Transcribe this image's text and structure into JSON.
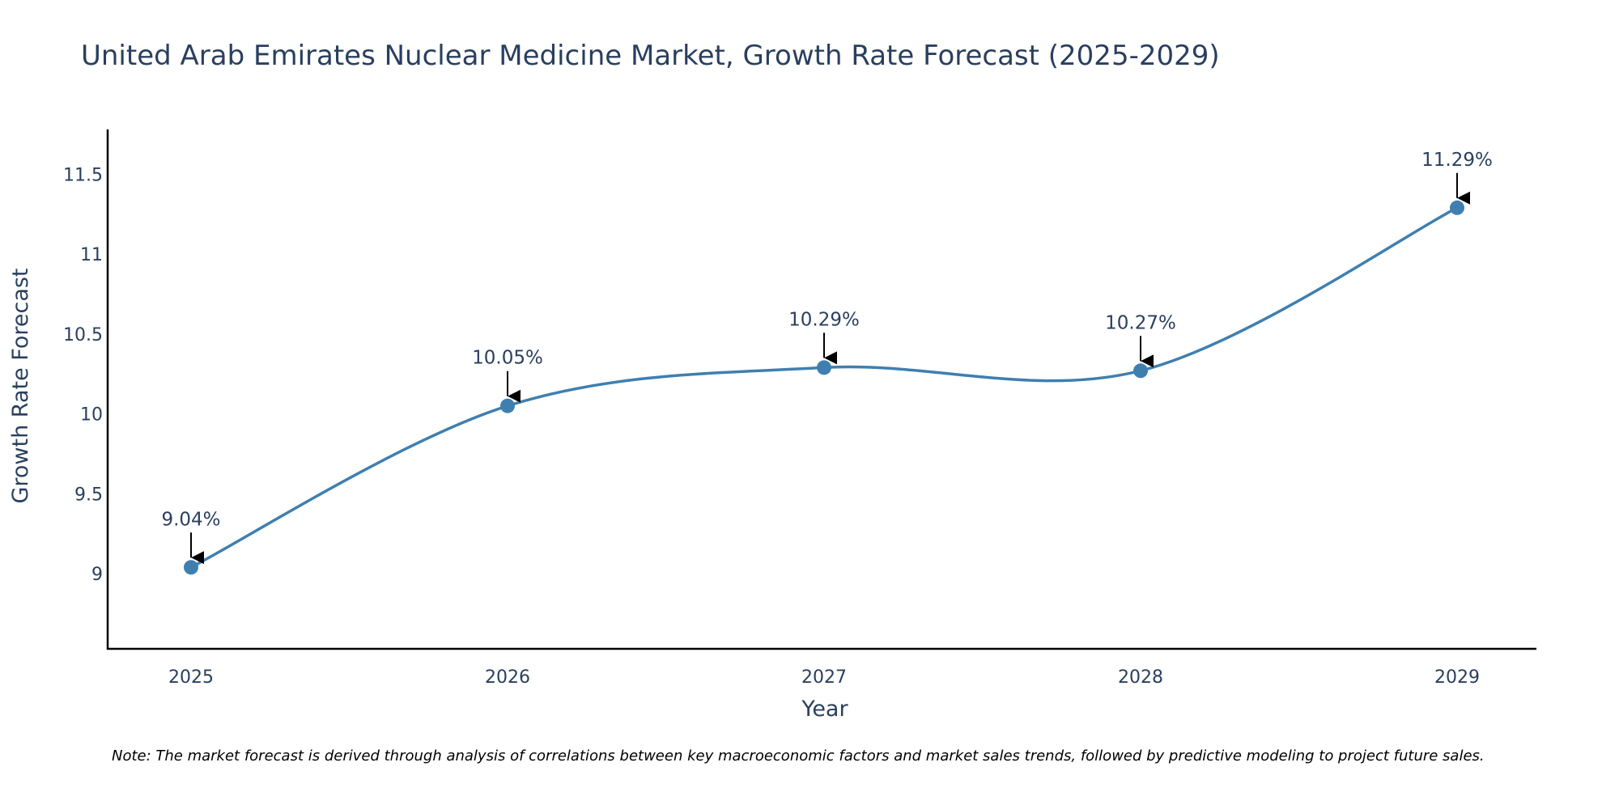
{
  "chart_data": {
    "type": "line",
    "title": "United Arab Emirates Nuclear Medicine Market, Growth Rate Forecast (2025-2029)",
    "xlabel": "Year",
    "ylabel": "Growth Rate Forecast",
    "categories": [
      "2025",
      "2026",
      "2027",
      "2028",
      "2029"
    ],
    "values": [
      9.04,
      10.05,
      10.29,
      10.27,
      11.29
    ],
    "data_labels": [
      "9.04%",
      "10.05%",
      "10.29%",
      "10.27%",
      "11.29%"
    ],
    "y_ticks": [
      9,
      9.5,
      10,
      10.5,
      11,
      11.5
    ],
    "y_tick_labels": [
      "9",
      "9.5",
      "10",
      "10.5",
      "11",
      "11.5"
    ],
    "ylim": [
      8.53,
      11.78
    ],
    "grid": false,
    "legend": "none",
    "line_shape": "spline",
    "series_color": "#3f7fb0",
    "axis_color": "#000000",
    "text_color": "#2a3f5f"
  },
  "note": "Note: The market forecast is derived through analysis of correlations between key macroeconomic factors and market sales trends, followed by predictive modeling to project future sales."
}
